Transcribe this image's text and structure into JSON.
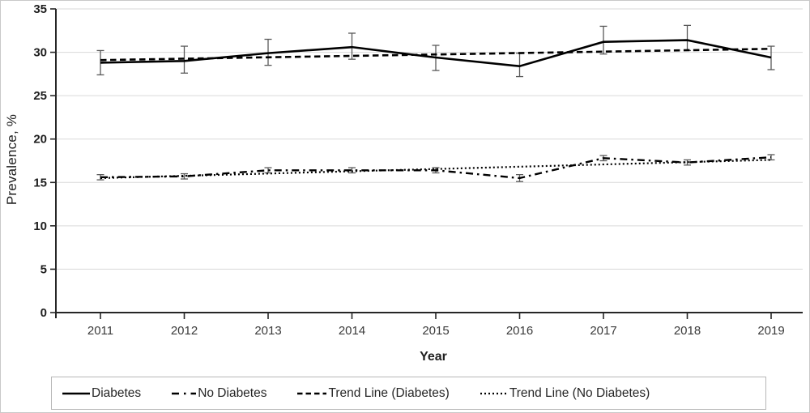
{
  "chart_data": {
    "type": "line",
    "title": "",
    "xlabel": "Year",
    "ylabel": "Prevalence, %",
    "ylim": [
      0,
      35
    ],
    "yticks": [
      0,
      5,
      10,
      15,
      20,
      25,
      30,
      35
    ],
    "grid": "horizontal",
    "legend_position": "bottom",
    "x": [
      2011,
      2012,
      2013,
      2014,
      2015,
      2016,
      2017,
      2018,
      2019
    ],
    "series": [
      {
        "name": "Diabetes",
        "line_style": "solid",
        "values": [
          28.8,
          29.0,
          29.9,
          30.6,
          29.4,
          28.4,
          31.2,
          31.4,
          29.4
        ],
        "ci_low": [
          27.4,
          27.6,
          28.5,
          29.2,
          27.9,
          27.2,
          29.8,
          30.2,
          28.0
        ],
        "ci_high": [
          30.2,
          30.7,
          31.5,
          32.2,
          30.8,
          29.9,
          33.0,
          33.1,
          30.7
        ]
      },
      {
        "name": "No Diabetes",
        "line_style": "dashdot",
        "values": [
          15.6,
          15.7,
          16.4,
          16.4,
          16.4,
          15.5,
          17.8,
          17.3,
          17.9
        ],
        "ci_low": [
          15.3,
          15.4,
          16.1,
          16.1,
          16.1,
          15.1,
          17.5,
          17.0,
          17.6
        ],
        "ci_high": [
          15.9,
          16.0,
          16.7,
          16.7,
          16.7,
          15.9,
          18.1,
          17.6,
          18.2
        ]
      }
    ],
    "trend_lines": [
      {
        "name": "Trend Line (Diabetes)",
        "line_style": "dashed",
        "start_value": 29.1,
        "end_value": 30.4
      },
      {
        "name": "Trend Line (No Diabetes)",
        "line_style": "dotted",
        "start_value": 15.5,
        "end_value": 17.6
      }
    ],
    "colors": {
      "line": "#000000",
      "error_bar": "#595959",
      "gridline": "#d9d9d9",
      "axis": "#262626"
    }
  },
  "legend": {
    "items": [
      {
        "label": "Diabetes",
        "style": "solid"
      },
      {
        "label": "No Diabetes",
        "style": "dashdot"
      },
      {
        "label": "Trend Line (Diabetes)",
        "style": "dashed"
      },
      {
        "label": "Trend Line (No Diabetes)",
        "style": "dotted"
      }
    ]
  }
}
